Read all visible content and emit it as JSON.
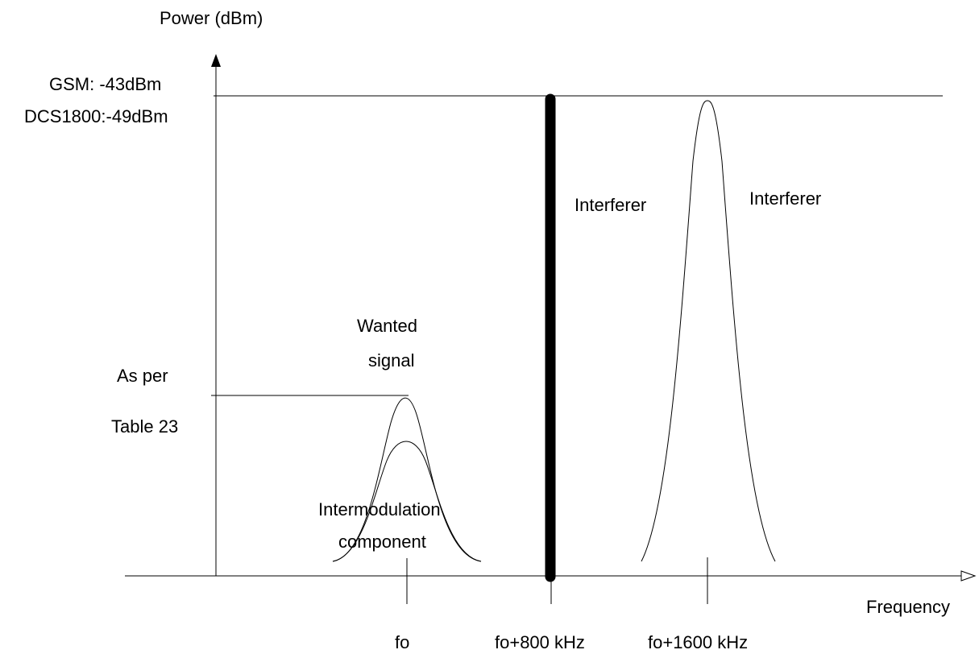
{
  "axes": {
    "y_label": "Power (dBm)",
    "x_label": "Frequency"
  },
  "levels": {
    "upper_line1": "GSM: -43dBm",
    "upper_line2": "DCS1800:-49dBm",
    "lower_line1": "As per",
    "lower_line2": "Table 23"
  },
  "signals": {
    "wanted_line1": "Wanted",
    "wanted_line2": "signal",
    "intermod_line1": "Intermodulation",
    "intermod_line2": "component",
    "interferer_cw": "Interferer",
    "interferer_mod": "Interferer"
  },
  "frequencies": {
    "f0": "fo",
    "f1": "fo+800 kHz",
    "f2": "fo+1600 kHz"
  }
}
